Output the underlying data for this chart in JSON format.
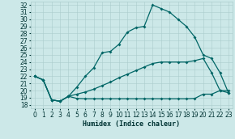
{
  "title": "",
  "xlabel": "Humidex (Indice chaleur)",
  "bg_color": "#cce8e8",
  "grid_color": "#aacccc",
  "line_color": "#006666",
  "xlim": [
    -0.5,
    23.5
  ],
  "ylim": [
    17.5,
    32.5
  ],
  "yticks": [
    18,
    19,
    20,
    21,
    22,
    23,
    24,
    25,
    26,
    27,
    28,
    29,
    30,
    31,
    32
  ],
  "xticks": [
    0,
    1,
    2,
    3,
    4,
    5,
    6,
    7,
    8,
    9,
    10,
    11,
    12,
    13,
    14,
    15,
    16,
    17,
    18,
    19,
    20,
    21,
    22,
    23
  ],
  "upper_x": [
    0,
    1,
    2,
    3,
    4,
    5,
    6,
    7,
    8,
    9,
    10,
    11,
    12,
    13,
    14,
    15,
    16,
    17,
    18,
    19,
    20,
    21,
    22,
    23
  ],
  "upper_y": [
    22.0,
    21.5,
    18.7,
    18.5,
    19.2,
    20.5,
    22.0,
    23.2,
    25.3,
    25.5,
    26.5,
    28.2,
    28.8,
    29.0,
    32.0,
    31.5,
    31.0,
    30.0,
    29.0,
    27.5,
    25.0,
    24.5,
    22.5,
    19.7
  ],
  "mid_x": [
    0,
    1,
    2,
    3,
    4,
    5,
    6,
    7,
    8,
    9,
    10,
    11,
    12,
    13,
    14,
    15,
    16,
    17,
    18,
    19,
    20,
    21,
    22,
    23
  ],
  "mid_y": [
    22.0,
    21.5,
    18.7,
    18.5,
    19.2,
    19.5,
    19.8,
    20.2,
    20.7,
    21.2,
    21.8,
    22.3,
    22.8,
    23.3,
    23.8,
    24.0,
    24.0,
    24.0,
    24.0,
    24.2,
    24.5,
    22.5,
    20.0,
    19.7
  ],
  "bot_x": [
    0,
    1,
    2,
    3,
    4,
    5,
    6,
    7,
    8,
    9,
    10,
    11,
    12,
    13,
    14,
    15,
    16,
    17,
    18,
    19,
    20,
    21,
    22,
    23
  ],
  "bot_y": [
    22.0,
    21.5,
    18.7,
    18.5,
    19.2,
    18.9,
    18.85,
    18.85,
    18.85,
    18.85,
    18.85,
    18.85,
    18.85,
    18.85,
    18.85,
    18.85,
    18.85,
    18.85,
    18.85,
    18.9,
    19.5,
    19.5,
    20.0,
    20.0
  ],
  "markersize": 2.0,
  "linewidth": 0.9,
  "tick_fontsize": 5.5,
  "xlabel_fontsize": 6.0
}
